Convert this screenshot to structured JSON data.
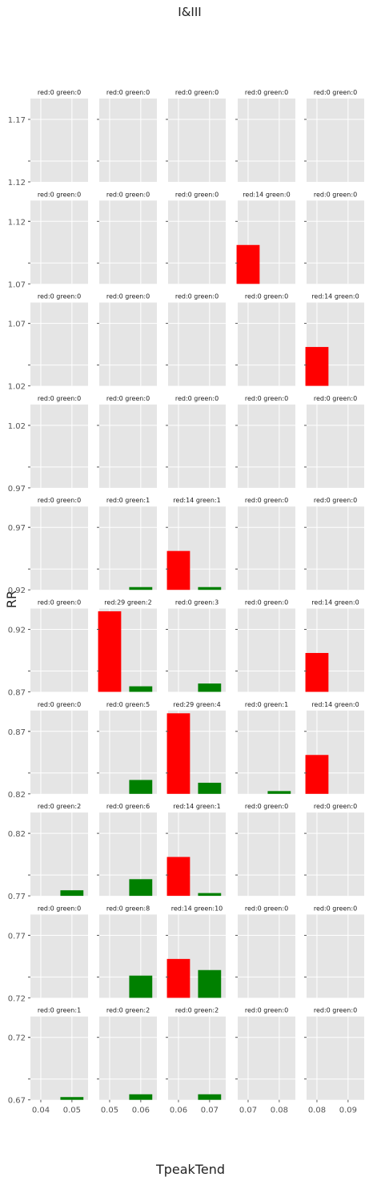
{
  "chart_data": {
    "type": "bar",
    "title": "I&III",
    "xlabel": "TpeakTend",
    "ylabel": "RR",
    "grid": true,
    "colors": {
      "red": "#ff0000",
      "green": "#008000",
      "panel_bg": "#e5e5e5",
      "grid": "#ffffff",
      "text": "#555555"
    },
    "col_xticks": [
      [
        "0.04",
        "0.05"
      ],
      [
        "0.05",
        "0.06"
      ],
      [
        "0.06",
        "0.07"
      ],
      [
        "0.07",
        "0.08"
      ],
      [
        "0.08",
        "0.09"
      ]
    ],
    "row_yticks": [
      [
        "1.12",
        "1.17"
      ],
      [
        "1.07",
        "1.12"
      ],
      [
        "1.02",
        "1.07"
      ],
      [
        "0.97",
        "1.02"
      ],
      [
        "0.92",
        "0.97"
      ],
      [
        "0.87",
        "0.92"
      ],
      [
        "0.82",
        "0.87"
      ],
      [
        "0.77",
        "0.82"
      ],
      [
        "0.72",
        "0.77"
      ],
      [
        "0.67",
        "0.72"
      ]
    ],
    "panel_ymax": 30,
    "panels": [
      [
        {
          "label": "red:0 green:0",
          "red": 0,
          "green": 0
        },
        {
          "label": "red:0 green:0",
          "red": 0,
          "green": 0
        },
        {
          "label": "red:0 green:0",
          "red": 0,
          "green": 0
        },
        {
          "label": "red:0 green:0",
          "red": 0,
          "green": 0
        },
        {
          "label": "red:0 green:0",
          "red": 0,
          "green": 0
        }
      ],
      [
        {
          "label": "red:0 green:0",
          "red": 0,
          "green": 0
        },
        {
          "label": "red:0 green:0",
          "red": 0,
          "green": 0
        },
        {
          "label": "red:0 green:0",
          "red": 0,
          "green": 0
        },
        {
          "label": "red:14 green:0",
          "red": 14,
          "green": 0
        },
        {
          "label": "red:0 green:0",
          "red": 0,
          "green": 0
        }
      ],
      [
        {
          "label": "red:0 green:0",
          "red": 0,
          "green": 0
        },
        {
          "label": "red:0 green:0",
          "red": 0,
          "green": 0
        },
        {
          "label": "red:0 green:0",
          "red": 0,
          "green": 0
        },
        {
          "label": "red:0 green:0",
          "red": 0,
          "green": 0
        },
        {
          "label": "red:14 green:0",
          "red": 14,
          "green": 0
        }
      ],
      [
        {
          "label": "red:0 green:0",
          "red": 0,
          "green": 0
        },
        {
          "label": "red:0 green:0",
          "red": 0,
          "green": 0
        },
        {
          "label": "red:0 green:0",
          "red": 0,
          "green": 0
        },
        {
          "label": "red:0 green:0",
          "red": 0,
          "green": 0
        },
        {
          "label": "red:0 green:0",
          "red": 0,
          "green": 0
        }
      ],
      [
        {
          "label": "red:0 green:0",
          "red": 0,
          "green": 0
        },
        {
          "label": "red:0 green:1",
          "red": 0,
          "green": 1
        },
        {
          "label": "red:14 green:1",
          "red": 14,
          "green": 1
        },
        {
          "label": "red:0 green:0",
          "red": 0,
          "green": 0
        },
        {
          "label": "red:0 green:0",
          "red": 0,
          "green": 0
        }
      ],
      [
        {
          "label": "red:0 green:0",
          "red": 0,
          "green": 0
        },
        {
          "label": "red:29 green:2",
          "red": 29,
          "green": 2
        },
        {
          "label": "red:0 green:3",
          "red": 0,
          "green": 3
        },
        {
          "label": "red:0 green:0",
          "red": 0,
          "green": 0
        },
        {
          "label": "red:14 green:0",
          "red": 14,
          "green": 0
        }
      ],
      [
        {
          "label": "red:0 green:0",
          "red": 0,
          "green": 0
        },
        {
          "label": "red:0 green:5",
          "red": 0,
          "green": 5
        },
        {
          "label": "red:29 green:4",
          "red": 29,
          "green": 4
        },
        {
          "label": "red:0 green:1",
          "red": 0,
          "green": 1
        },
        {
          "label": "red:14 green:0",
          "red": 14,
          "green": 0
        }
      ],
      [
        {
          "label": "red:0 green:2",
          "red": 0,
          "green": 2
        },
        {
          "label": "red:0 green:6",
          "red": 0,
          "green": 6
        },
        {
          "label": "red:14 green:1",
          "red": 14,
          "green": 1
        },
        {
          "label": "red:0 green:0",
          "red": 0,
          "green": 0
        },
        {
          "label": "red:0 green:0",
          "red": 0,
          "green": 0
        }
      ],
      [
        {
          "label": "red:0 green:0",
          "red": 0,
          "green": 0
        },
        {
          "label": "red:0 green:8",
          "red": 0,
          "green": 8
        },
        {
          "label": "red:14 green:10",
          "red": 14,
          "green": 10
        },
        {
          "label": "red:0 green:0",
          "red": 0,
          "green": 0
        },
        {
          "label": "red:0 green:0",
          "red": 0,
          "green": 0
        }
      ],
      [
        {
          "label": "red:0 green:1",
          "red": 0,
          "green": 1
        },
        {
          "label": "red:0 green:2",
          "red": 0,
          "green": 2
        },
        {
          "label": "red:0 green:2",
          "red": 0,
          "green": 2
        },
        {
          "label": "red:0 green:0",
          "red": 0,
          "green": 0
        },
        {
          "label": "red:0 green:0",
          "red": 0,
          "green": 0
        }
      ]
    ]
  }
}
